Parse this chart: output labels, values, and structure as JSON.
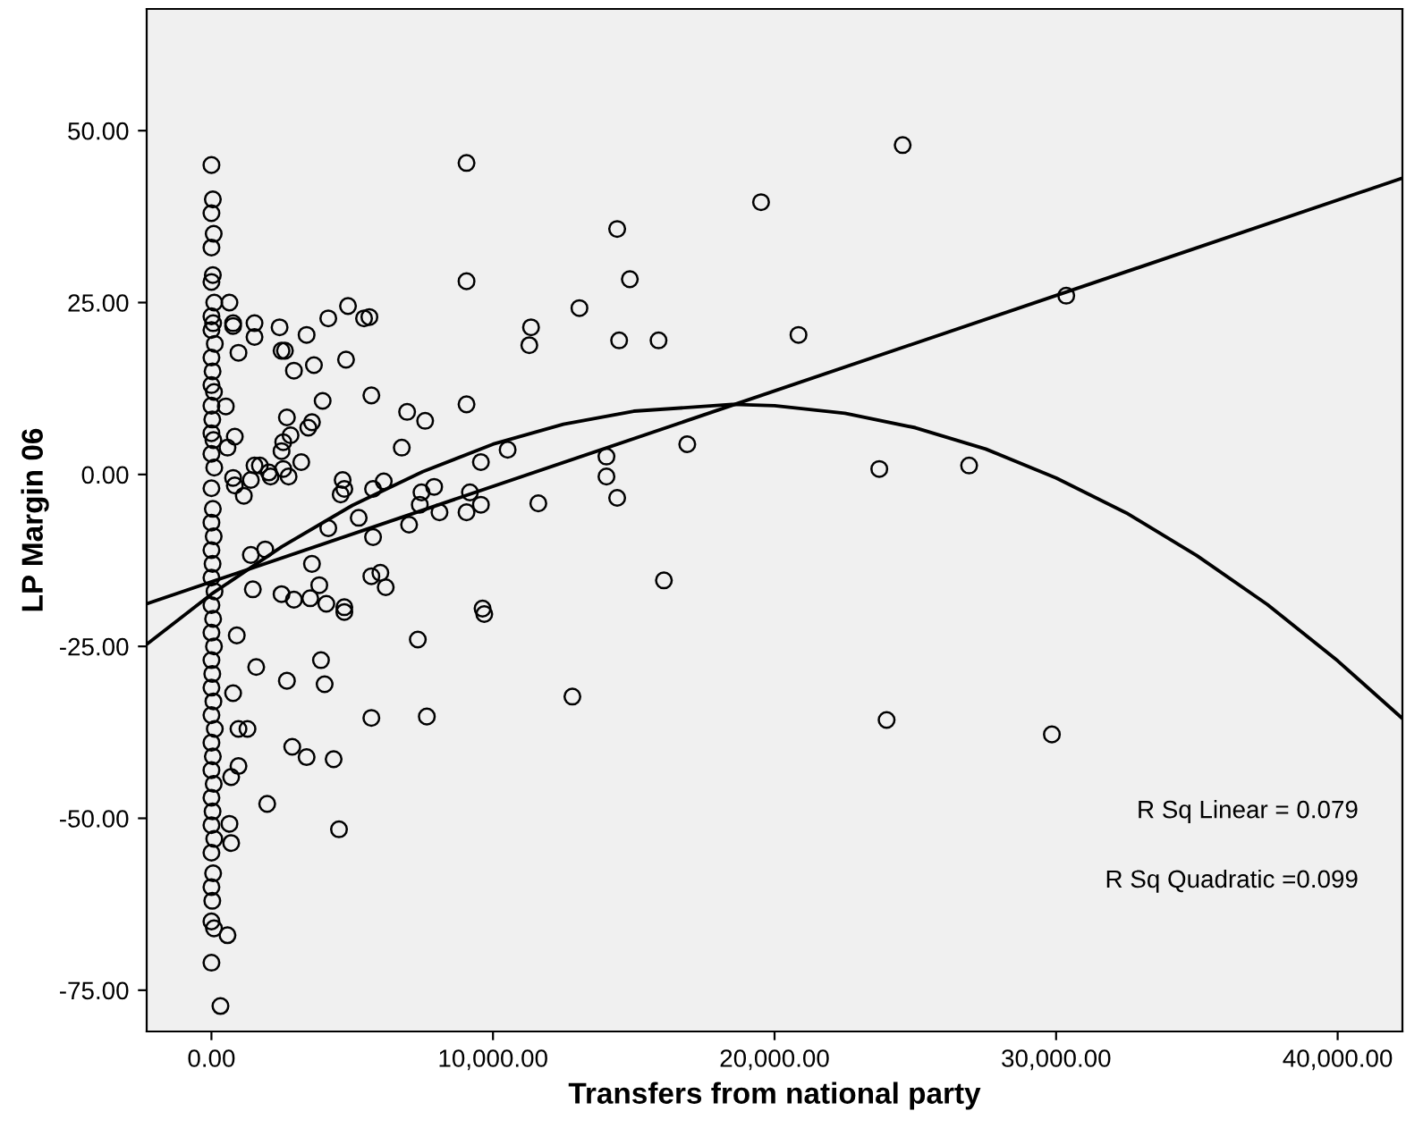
{
  "chart_data": {
    "type": "scatter",
    "xlabel": "Transfers from national party",
    "ylabel": "LP Margin 06",
    "xlim": [
      -2300,
      42300
    ],
    "ylim": [
      -81,
      67.7
    ],
    "xticks": [
      {
        "value": 0,
        "label": "0.00"
      },
      {
        "value": 10000,
        "label": "10,000.00"
      },
      {
        "value": 20000,
        "label": "20,000.00"
      },
      {
        "value": 30000,
        "label": "30,000.00"
      },
      {
        "value": 40000,
        "label": "40,000.00"
      }
    ],
    "yticks": [
      {
        "value": -75,
        "label": "-75.00"
      },
      {
        "value": -50,
        "label": "-50.00"
      },
      {
        "value": -25,
        "label": "-25.00"
      },
      {
        "value": 0,
        "label": "0.00"
      },
      {
        "value": 25,
        "label": "25.00"
      },
      {
        "value": 50,
        "label": "50.00"
      }
    ],
    "grid": false,
    "legend": false,
    "annotations": [
      "R Sq Linear = 0.079",
      "R Sq Quadratic =0.099"
    ],
    "series": [
      {
        "marker": "circle",
        "color": "#000000",
        "x": [
          0,
          50,
          0,
          80,
          0,
          50,
          0,
          100,
          0,
          60,
          0,
          120,
          0,
          40,
          0,
          90,
          0,
          30,
          0,
          70,
          0,
          100,
          0,
          50,
          0,
          80,
          0,
          40,
          0,
          110,
          0,
          60,
          0,
          90,
          0,
          30,
          0,
          70,
          0,
          120,
          0,
          50,
          0,
          80,
          0,
          40,
          0,
          100,
          0,
          60,
          0,
          30,
          0,
          90,
          0,
          320,
          640,
          770,
          1530,
          1530,
          2420,
          2490,
          3380,
          4150,
          3640,
          4850,
          5420,
          5610,
          4780,
          5680,
          6950,
          7590,
          9060,
          9060,
          9060,
          3950,
          3570,
          3440,
          2810,
          2550,
          2550,
          3190,
          2040,
          1720,
          1400,
          1150,
          830,
          4660,
          4590,
          5740,
          6120,
          7460,
          7910,
          7400,
          8100,
          9060,
          9180,
          9570,
          9570,
          10520,
          11290,
          11350,
          13070,
          14410,
          14480,
          14860,
          15880,
          16070,
          16900,
          11610,
          14030,
          14030,
          14410,
          12820,
          19520,
          20850,
          23720,
          23980,
          24550,
          26910,
          30360,
          29850,
          1400,
          1910,
          1470,
          2490,
          2930,
          3510,
          3830,
          3570,
          4080,
          4720,
          4720,
          5680,
          6000,
          6190,
          9630,
          9690,
          7330,
          1590,
          2680,
          3890,
          4020,
          5680,
          7650,
          2870,
          3380,
          4340,
          1980,
          4530,
          770,
          960,
          1280,
          700,
          960,
          640,
          700,
          570,
          900,
          510,
          830,
          570,
          770,
          2680,
          2490,
          2740,
          2100,
          1530,
          6760,
          2610,
          2930,
          770,
          960,
          4720,
          5230,
          4150,
          5740,
          7020
        ],
        "values": [
          45,
          40,
          38,
          35,
          33,
          29,
          28,
          25,
          23,
          22,
          21,
          19,
          17,
          15,
          13,
          12,
          10,
          8,
          6,
          5,
          3,
          1,
          -2,
          -5,
          -7,
          -9,
          -11,
          -13,
          -15,
          -17,
          -19,
          -21,
          -23,
          -25,
          -27,
          -29,
          -31,
          -33,
          -35,
          -37,
          -39,
          -41,
          -43,
          -45,
          -47,
          -49,
          -51,
          -53,
          -55,
          -58,
          -60,
          -62,
          -65,
          -66,
          -71,
          -77.3,
          25,
          22,
          22,
          20,
          21.4,
          18,
          20.3,
          22.7,
          15.9,
          24.5,
          22.7,
          22.9,
          16.7,
          11.5,
          9.1,
          7.8,
          45.3,
          28.1,
          10.2,
          10.7,
          7.6,
          6.8,
          5.7,
          4.7,
          0.8,
          1.8,
          0.3,
          1.3,
          -0.8,
          -3.1,
          -1.6,
          -0.8,
          -2.9,
          -2.1,
          -1,
          -2.6,
          -1.8,
          -4.4,
          -5.5,
          -5.5,
          -2.6,
          -4.4,
          1.8,
          3.6,
          18.8,
          21.4,
          24.2,
          35.7,
          19.5,
          28.4,
          19.5,
          -15.4,
          4.4,
          -4.2,
          2.6,
          -0.3,
          -3.4,
          -32.3,
          39.6,
          20.3,
          0.8,
          -35.7,
          47.9,
          1.3,
          26,
          -37.8,
          -11.7,
          -10.9,
          -16.7,
          -17.4,
          -18.2,
          -18,
          -16.1,
          -13,
          -18.8,
          -19.3,
          -20,
          -14.8,
          -14.3,
          -16.4,
          -19.5,
          -20.3,
          -24,
          -28,
          -30,
          -27,
          -30.5,
          -35.4,
          -35.2,
          -39.6,
          -41.1,
          -41.4,
          -47.9,
          -51.6,
          -31.8,
          -37,
          -37,
          -44,
          -42.4,
          -50.8,
          -53.6,
          -67,
          -23.4,
          9.9,
          5.5,
          3.9,
          -0.5,
          8.3,
          3.4,
          -0.3,
          -0.3,
          1.3,
          3.9,
          18,
          15.1,
          21.6,
          17.7,
          -2.1,
          -6.3,
          -7.8,
          -9.1,
          -7.3
        ]
      },
      {
        "type": "line",
        "color": "#000000",
        "x": [
          -2300,
          42300
        ],
        "values": [
          -18.8,
          43.1
        ]
      },
      {
        "type": "line",
        "color": "#000000",
        "x": [
          -2300,
          0,
          2500,
          5000,
          7500,
          10000,
          12500,
          15000,
          18500,
          20000,
          22500,
          25000,
          27500,
          30000,
          32500,
          35000,
          37500,
          40000,
          42300
        ],
        "values": [
          -24.7,
          -17.4,
          -10.5,
          -4.5,
          0.4,
          4.4,
          7.3,
          9.2,
          10.2,
          10.0,
          8.9,
          6.8,
          3.7,
          -0.5,
          -5.6,
          -11.8,
          -18.9,
          -27.1,
          -35.5
        ]
      }
    ]
  }
}
